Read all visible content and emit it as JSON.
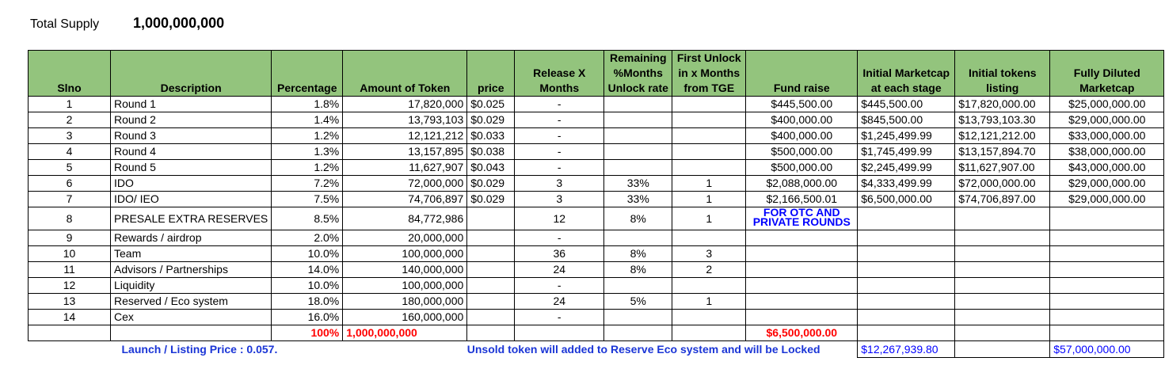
{
  "total_supply": {
    "label": "Total Supply",
    "value": "1,000,000,000"
  },
  "headers": {
    "slno": "Slno",
    "description": "Description",
    "percentage": "Percentage",
    "amount": "Amount of Token",
    "price": "price",
    "release": "Release X Months",
    "remaining": "Remaining %Months Unlock rate",
    "first_unlock": "First Unlock in x Months from TGE",
    "fund": "Fund raise",
    "initial_mcap": "Initial Marketcap at each stage",
    "initial_tokens": "Initial tokens listing",
    "fdmc": "Fully Diluted Marketcap"
  },
  "rows": [
    {
      "slno": "1",
      "desc": "Round 1",
      "pct": "1.8%",
      "amount": "17,820,000",
      "price": "$0.025",
      "release": "-",
      "remaining": "",
      "first": "",
      "fund": "$445,500.00",
      "imc": "$445,500.00",
      "itl": "$17,820,000.00",
      "fdmc": "$25,000,000.00"
    },
    {
      "slno": "2",
      "desc": "Round 2",
      "pct": "1.4%",
      "amount": "13,793,103",
      "price": "$0.029",
      "release": "-",
      "remaining": "",
      "first": "",
      "fund": "$400,000.00",
      "imc": "$845,500.00",
      "itl": "$13,793,103.30",
      "fdmc": "$29,000,000.00"
    },
    {
      "slno": "3",
      "desc": "Round 3",
      "pct": "1.2%",
      "amount": "12,121,212",
      "price": "$0.033",
      "release": "-",
      "remaining": "",
      "first": "",
      "fund": "$400,000.00",
      "imc": "$1,245,499.99",
      "itl": "$12,121,212.00",
      "fdmc": "$33,000,000.00"
    },
    {
      "slno": "4",
      "desc": "Round 4",
      "pct": "1.3%",
      "amount": "13,157,895",
      "price": "$0.038",
      "release": "-",
      "remaining": "",
      "first": "",
      "fund": "$500,000.00",
      "imc": "$1,745,499.99",
      "itl": "$13,157,894.70",
      "fdmc": "$38,000,000.00"
    },
    {
      "slno": "5",
      "desc": "Round 5",
      "pct": "1.2%",
      "amount": "11,627,907",
      "price": "$0.043",
      "release": "-",
      "remaining": "",
      "first": "",
      "fund": "$500,000.00",
      "imc": "$2,245,499.99",
      "itl": "$11,627,907.00",
      "fdmc": "$43,000,000.00"
    },
    {
      "slno": "6",
      "desc": "IDO",
      "pct": "7.2%",
      "amount": "72,000,000",
      "price": "$0.029",
      "release": "3",
      "remaining": "33%",
      "first": "1",
      "fund": "$2,088,000.00",
      "imc": "$4,333,499.99",
      "itl": "$72,000,000.00",
      "fdmc": "$29,000,000.00"
    },
    {
      "slno": "7",
      "desc": "IDO/ IEO",
      "pct": "7.5%",
      "amount": "74,706,897",
      "price": "$0.029",
      "release": "3",
      "remaining": "33%",
      "first": "1",
      "fund": "$2,166,500.01",
      "imc": "$6,500,000.00",
      "itl": "$74,706,897.00",
      "fdmc": "$29,000,000.00"
    },
    {
      "slno": "8",
      "desc": "PRESALE EXTRA RESERVES",
      "pct": "8.5%",
      "amount": "84,772,986",
      "price": "",
      "release": "12",
      "remaining": "8%",
      "first": "1",
      "fund": "FOR OTC AND PRIVATE ROUNDS",
      "imc": "",
      "itl": "",
      "fdmc": ""
    },
    {
      "slno": "9",
      "desc": "Rewards / airdrop",
      "pct": "2.0%",
      "amount": "20,000,000",
      "price": "",
      "release": "-",
      "remaining": "",
      "first": "",
      "fund": "",
      "imc": "",
      "itl": "",
      "fdmc": ""
    },
    {
      "slno": "10",
      "desc": "Team",
      "pct": "10.0%",
      "amount": "100,000,000",
      "price": "",
      "release": "36",
      "remaining": "8%",
      "first": "3",
      "fund": "",
      "imc": "",
      "itl": "",
      "fdmc": ""
    },
    {
      "slno": "11",
      "desc": "Advisors / Partnerships",
      "pct": "14.0%",
      "amount": "140,000,000",
      "price": "",
      "release": "24",
      "remaining": "8%",
      "first": "2",
      "fund": "",
      "imc": "",
      "itl": "",
      "fdmc": ""
    },
    {
      "slno": "12",
      "desc": "Liquidity",
      "pct": "10.0%",
      "amount": "100,000,000",
      "price": "",
      "release": "-",
      "remaining": "",
      "first": "",
      "fund": "",
      "imc": "",
      "itl": "",
      "fdmc": ""
    },
    {
      "slno": "13",
      "desc": "Reserved / Eco system",
      "pct": "18.0%",
      "amount": "180,000,000",
      "price": "",
      "release": "24",
      "remaining": "5%",
      "first": "1",
      "fund": "",
      "imc": "",
      "itl": "",
      "fdmc": ""
    },
    {
      "slno": "14",
      "desc": "Cex",
      "pct": "16.0%",
      "amount": "160,000,000",
      "price": "",
      "release": "-",
      "remaining": "",
      "first": "",
      "fund": "",
      "imc": "",
      "itl": "",
      "fdmc": ""
    }
  ],
  "totals": {
    "pct": "100%",
    "amount": "1,000,000,000",
    "fund": "$6,500,000.00"
  },
  "footer": {
    "launch": "Launch / Listing Price : 0.057.",
    "unsold": "Unsold token will added to Reserve Eco system and will be Locked",
    "mcap_total": "$12,267,939.80",
    "fdmc_total": "$57,000,000.00"
  },
  "colors": {
    "header_bg": "#93c47d",
    "total_red": "#ff0000",
    "note_blue": "#1a35d6"
  }
}
